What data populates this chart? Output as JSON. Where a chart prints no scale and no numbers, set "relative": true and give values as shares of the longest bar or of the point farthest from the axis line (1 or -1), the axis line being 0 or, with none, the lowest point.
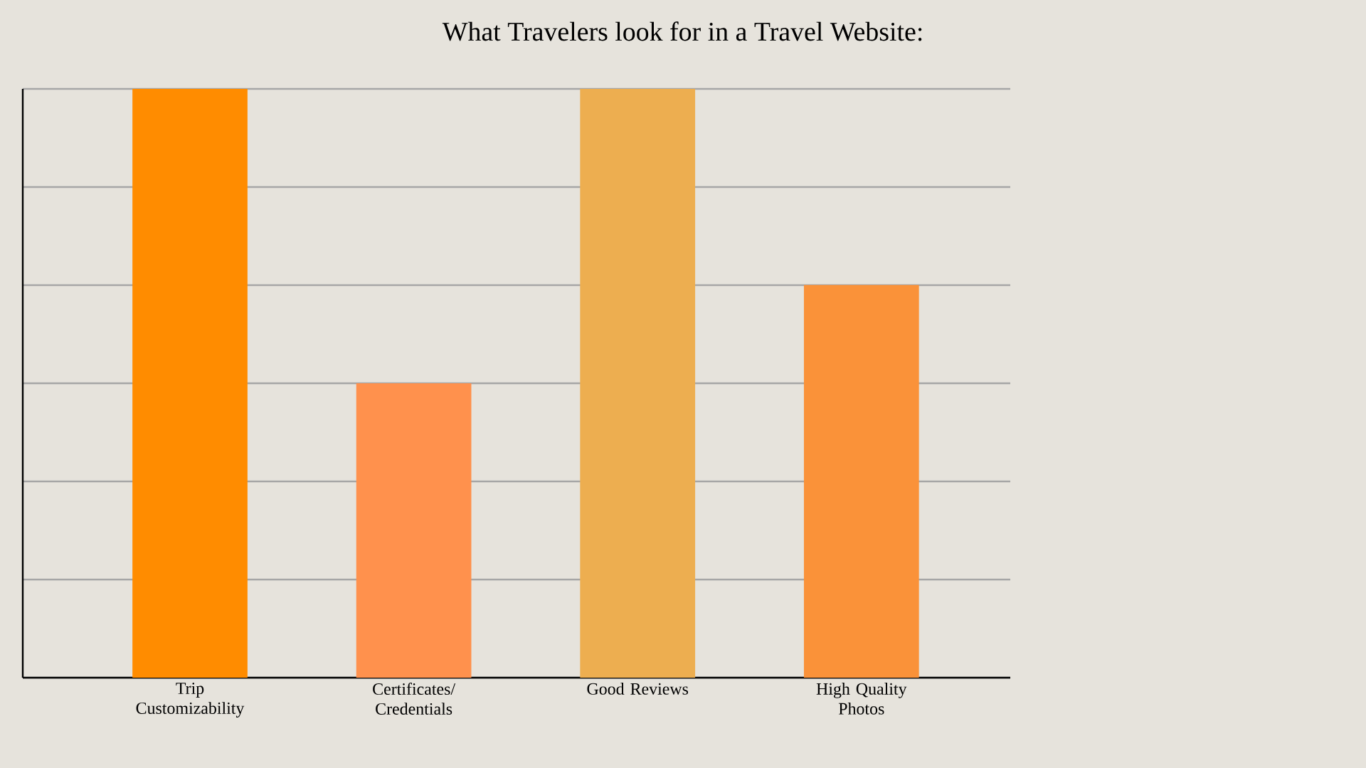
{
  "chart_data": {
    "type": "bar",
    "title": "What Travelers look for in a Travel Website:",
    "categories": [
      "Trip Customizability",
      "Certificates/ Credentials",
      "Good Reviews",
      "High Quality Photos"
    ],
    "values": [
      1,
      0.5,
      1,
      0.667
    ],
    "colors": [
      "#ff8c00",
      "#ff914d",
      "#edae50",
      "#fa9239"
    ],
    "relative": true,
    "grid": "y"
  }
}
